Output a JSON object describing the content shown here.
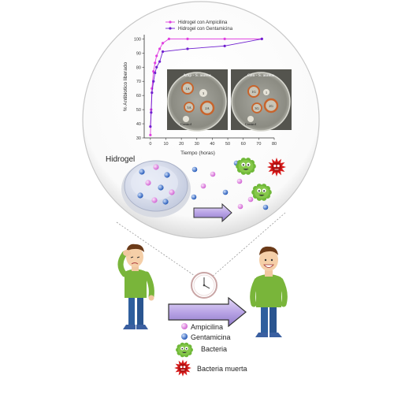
{
  "chart_data": {
    "type": "line",
    "xlabel": "Tiempo (horas)",
    "ylabel": "% Antibiotico liberado",
    "xlim": [
      -4,
      80
    ],
    "ylim": [
      30,
      103
    ],
    "x_ticks": [
      0,
      10,
      20,
      30,
      40,
      50,
      60,
      70,
      80
    ],
    "y_ticks": [
      30,
      40,
      50,
      60,
      70,
      80,
      90,
      100
    ],
    "legend_position": "top-center",
    "series": [
      {
        "name": "Hidrogel con Ampicilina",
        "color": "#e040e0",
        "x": [
          0,
          0.5,
          1,
          2,
          3,
          4,
          6,
          8,
          12,
          24,
          48,
          72
        ],
        "y": [
          32,
          50,
          65,
          77,
          83,
          88,
          93,
          97,
          100,
          100,
          100,
          100
        ]
      },
      {
        "name": "Hidrogel con Gentamicina",
        "color": "#7020d0",
        "x": [
          0,
          0.5,
          1,
          2,
          3,
          4,
          6,
          8,
          24,
          48,
          72
        ],
        "y": [
          38,
          48,
          62,
          70,
          76,
          80,
          84,
          91,
          93,
          95,
          100
        ]
      }
    ]
  },
  "photos": [
    {
      "title": "Amp - S. aureus",
      "labels": [
        "1A",
        "2A",
        "3A",
        "Control",
        "3"
      ]
    },
    {
      "title": "Gen - S. aureus",
      "labels": [
        "1G",
        "2G",
        "3G",
        "Control",
        "1"
      ]
    }
  ],
  "hydrogel_label": "Hidrogel",
  "legend": {
    "ampicilina": "Ampicilina",
    "gentamicina": "Gentamicina",
    "bacteria": "Bacteria",
    "bacteria_muerta": "Bacteria muerta"
  },
  "colors": {
    "ampicilina": "#e58ee6",
    "gentamicina": "#3a78d8",
    "bacteria": "#79c23e",
    "bacteria_muerta": "#d61a1a",
    "arrow": "#b9a4e6"
  }
}
